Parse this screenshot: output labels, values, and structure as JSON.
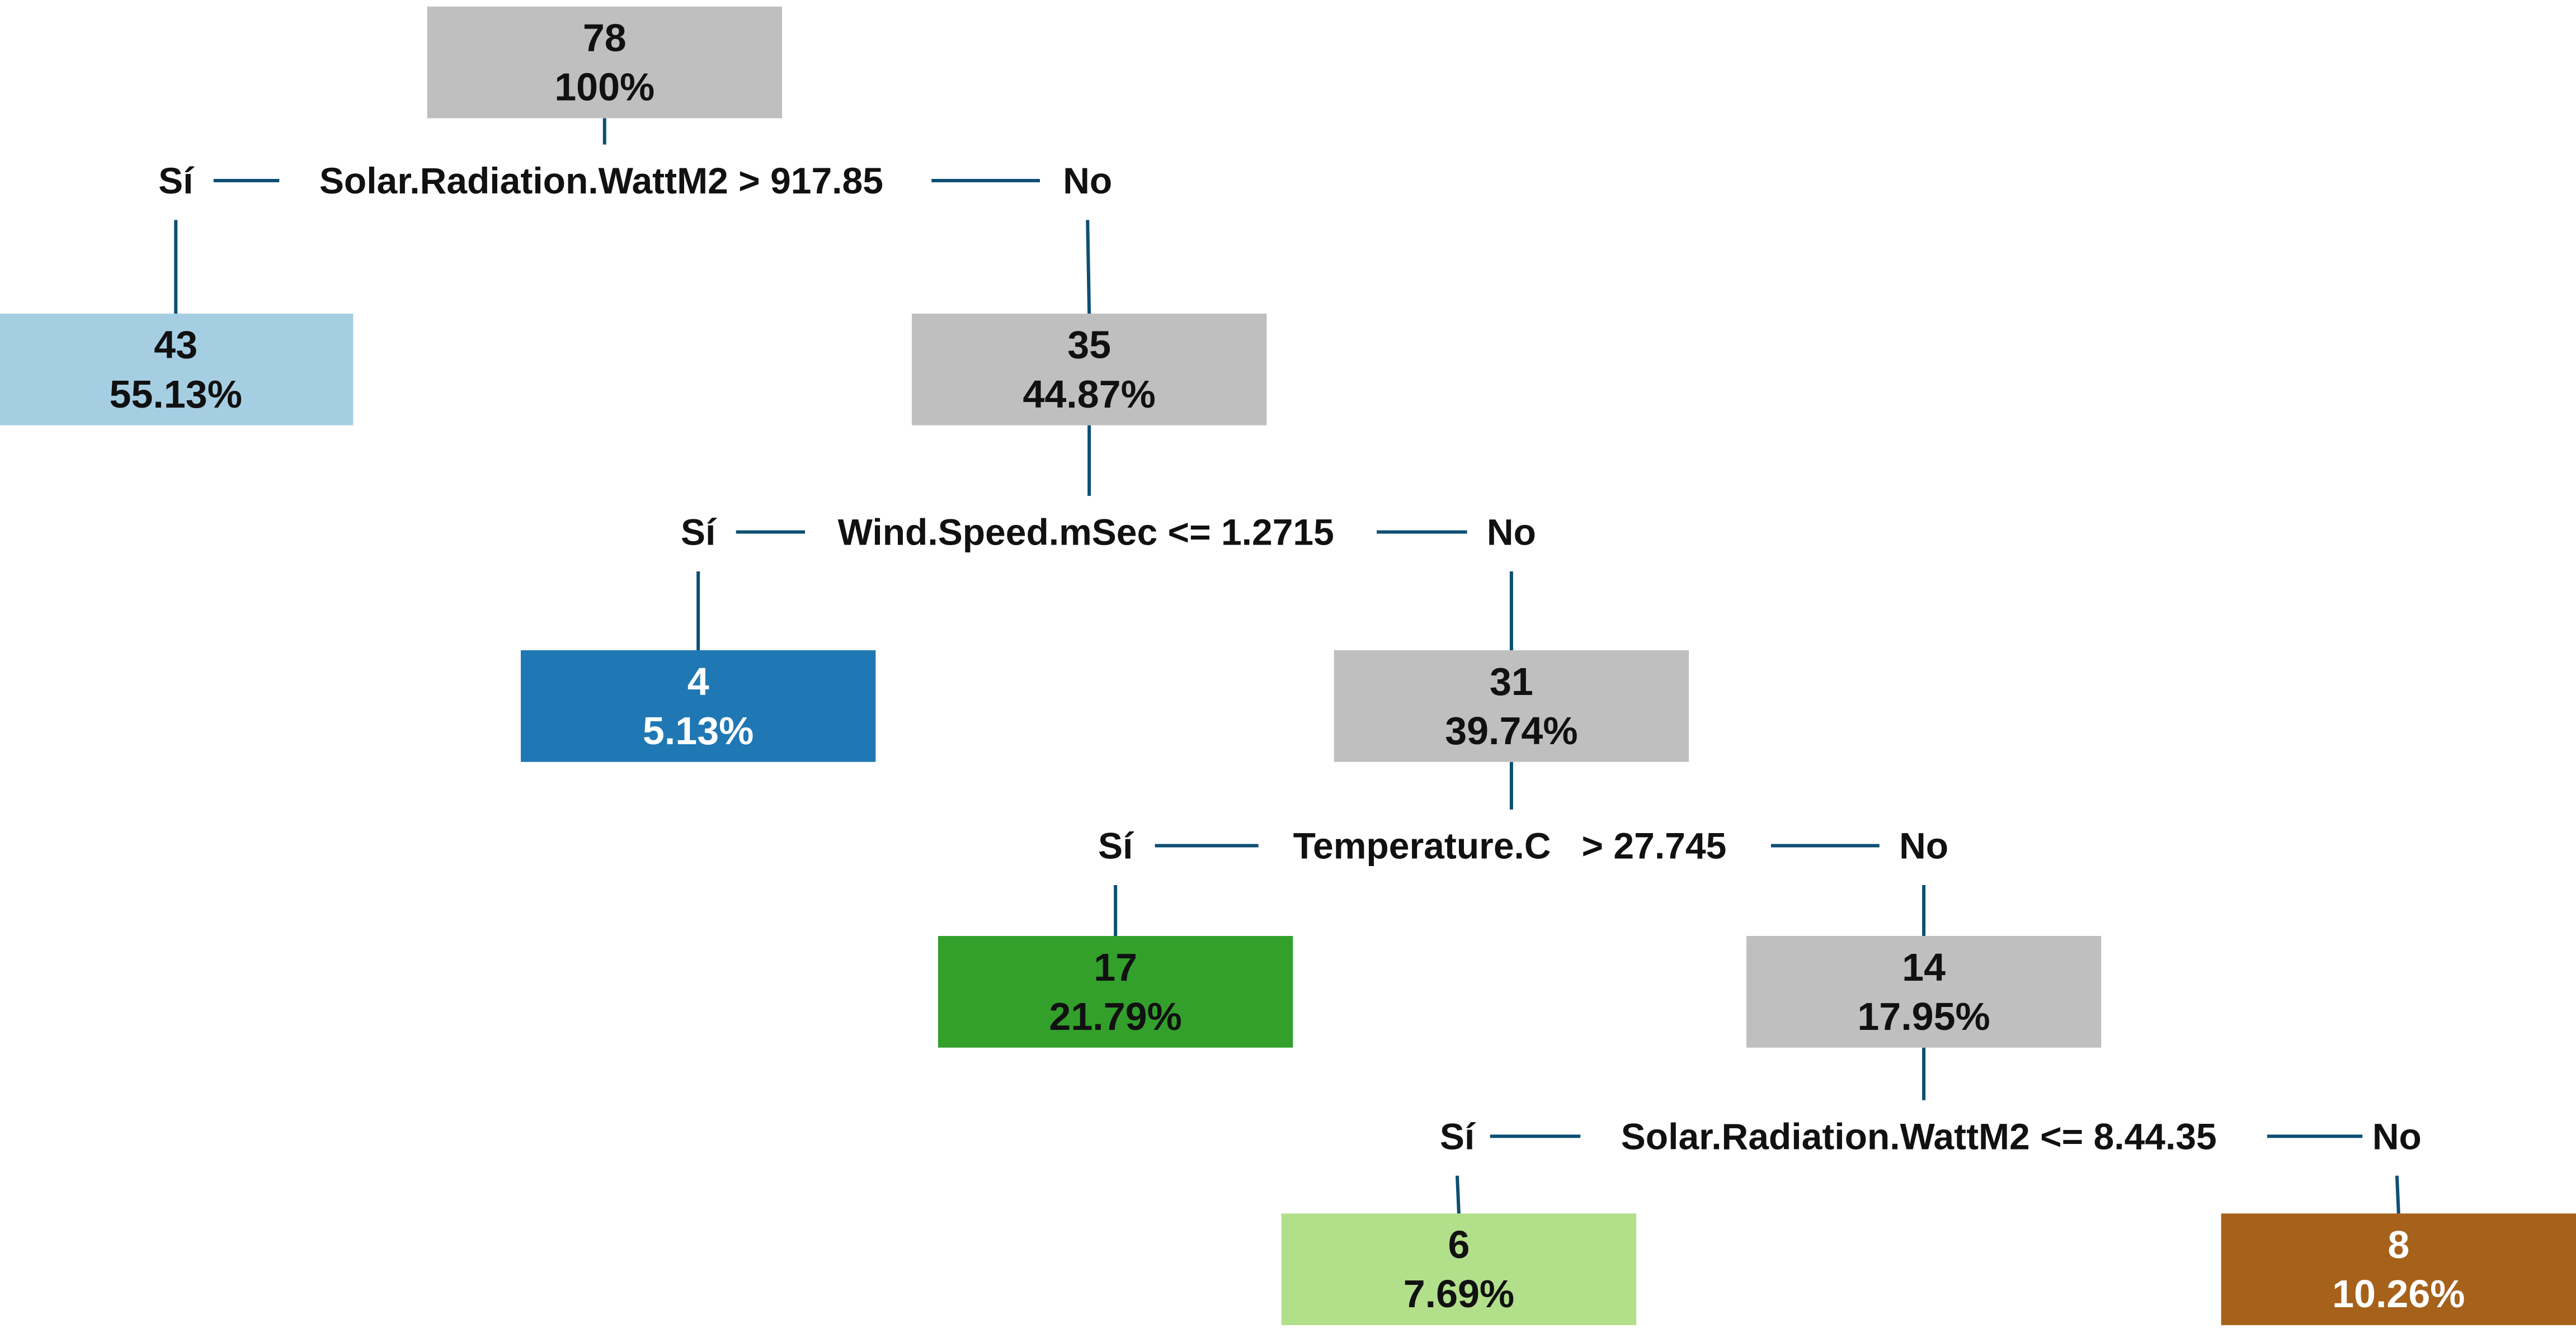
{
  "colors": {
    "connector": "#0d4f73",
    "split_node": "#bfbfbf",
    "dark_text": "#111111",
    "light_text": "#ffffff"
  },
  "tree": {
    "nodes": {
      "root": {
        "count": "78",
        "percent": "100%",
        "fill": "#bfbfbf",
        "text_color": "#111111"
      },
      "n43": {
        "count": "43",
        "percent": "55.13%",
        "fill": "#a6cee3",
        "text_color": "#111111"
      },
      "n35": {
        "count": "35",
        "percent": "44.87%",
        "fill": "#bfbfbf",
        "text_color": "#111111"
      },
      "n4": {
        "count": "4",
        "percent": "5.13%",
        "fill": "#1f78b4",
        "text_color": "#ffffff"
      },
      "n31": {
        "count": "31",
        "percent": "39.74%",
        "fill": "#bfbfbf",
        "text_color": "#111111"
      },
      "n17": {
        "count": "17",
        "percent": "21.79%",
        "fill": "#33a02c",
        "text_color": "#111111"
      },
      "n14": {
        "count": "14",
        "percent": "17.95%",
        "fill": "#bfbfbf",
        "text_color": "#111111"
      },
      "n6": {
        "count": "6",
        "percent": "7.69%",
        "fill": "#b2df8a",
        "text_color": "#111111"
      },
      "n8": {
        "count": "8",
        "percent": "10.26%",
        "fill": "#a6611a",
        "text_color": "#ffffff"
      }
    },
    "splits": {
      "s1": {
        "condition": "Solar.Radiation.WattM2 > 917.85",
        "yes": "Sí",
        "no": "No"
      },
      "s2": {
        "condition": "Wind.Speed.mSec <= 1.2715",
        "yes": "Sí",
        "no": "No"
      },
      "s3": {
        "condition": "Temperature.C   > 27.745",
        "yes": "Sí",
        "no": "No"
      },
      "s4": {
        "condition": "Solar.Radiation.WattM2 <= 8.44.35",
        "yes": "Sí",
        "no": "No"
      }
    }
  }
}
